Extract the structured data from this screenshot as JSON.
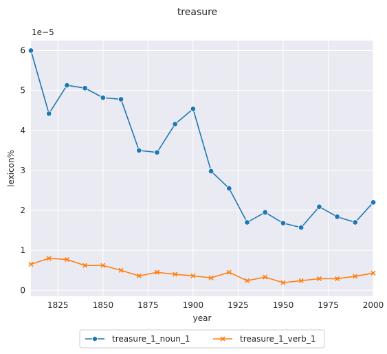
{
  "chart_data": {
    "type": "line",
    "title": "treasure",
    "xlabel": "year",
    "ylabel": "lexicon%",
    "y_offset_label": "1e−5",
    "xlim": [
      1810,
      2000
    ],
    "ylim": [
      -0.15,
      6.25
    ],
    "x_ticks": [
      1825,
      1850,
      1875,
      1900,
      1925,
      1950,
      1975,
      2000
    ],
    "y_ticks": [
      0,
      1,
      2,
      3,
      4,
      5,
      6
    ],
    "grid": true,
    "legend_position": "bottom-center",
    "x": [
      1810,
      1820,
      1830,
      1840,
      1850,
      1860,
      1870,
      1880,
      1890,
      1900,
      1910,
      1920,
      1930,
      1940,
      1950,
      1960,
      1970,
      1980,
      1990,
      2000
    ],
    "series": [
      {
        "name": "treasure_1_noun_1",
        "color": "#1f77b4",
        "marker": "circle",
        "values": [
          6.0,
          4.42,
          5.13,
          5.06,
          4.82,
          4.78,
          3.5,
          3.45,
          4.16,
          4.54,
          2.98,
          2.55,
          1.7,
          1.95,
          1.68,
          1.57,
          2.09,
          1.84,
          1.7,
          2.2
        ]
      },
      {
        "name": "treasure_1_verb_1",
        "color": "#ff7f0e",
        "marker": "x",
        "values": [
          0.65,
          0.8,
          0.77,
          0.62,
          0.62,
          0.5,
          0.36,
          0.45,
          0.4,
          0.36,
          0.31,
          0.45,
          0.24,
          0.33,
          0.19,
          0.24,
          0.29,
          0.29,
          0.35,
          0.43
        ]
      }
    ]
  }
}
